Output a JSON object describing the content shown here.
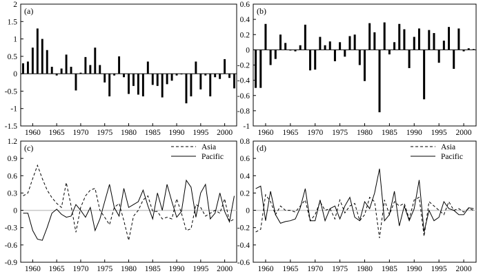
{
  "chart_data": [
    {
      "panel": "(a)",
      "type": "bar",
      "ylim": [
        -1.5,
        2
      ],
      "yticks": [
        -1.5,
        -1,
        -0.5,
        0,
        0.5,
        1,
        1.5,
        2
      ],
      "ytick_labels": [
        "-1.5",
        "-1",
        "-0.5",
        "0",
        "0.5",
        "1",
        "1.5",
        "2"
      ],
      "xlim": [
        1957.5,
        2002.5
      ],
      "xticks": [
        1960,
        1965,
        1970,
        1975,
        1980,
        1985,
        1990,
        1995,
        2000
      ],
      "xtick_labels": [
        "1960",
        "1965",
        "1970",
        "1975",
        "1980",
        "1985",
        "1990",
        "1995",
        "2000"
      ],
      "x": [
        1958,
        1959,
        1960,
        1961,
        1962,
        1963,
        1964,
        1965,
        1966,
        1967,
        1968,
        1969,
        1970,
        1971,
        1972,
        1973,
        1974,
        1975,
        1976,
        1977,
        1978,
        1979,
        1980,
        1981,
        1982,
        1983,
        1984,
        1985,
        1986,
        1987,
        1988,
        1989,
        1990,
        1991,
        1992,
        1993,
        1994,
        1995,
        1996,
        1997,
        1998,
        1999,
        2000,
        2001,
        2002
      ],
      "values": [
        0.3,
        0.35,
        0.75,
        1.3,
        1.0,
        0.68,
        0.2,
        -0.05,
        0.15,
        0.55,
        0.2,
        -0.48,
        0.03,
        0.48,
        0.25,
        0.75,
        0.25,
        -0.25,
        -0.65,
        -0.05,
        0.5,
        -0.1,
        -0.58,
        -0.35,
        -0.6,
        -0.65,
        0.35,
        -0.32,
        -0.35,
        -0.68,
        -0.3,
        -0.2,
        -0.05,
        0.0,
        -0.85,
        -0.65,
        0.35,
        -0.45,
        -0.05,
        -0.65,
        -0.1,
        -0.15,
        0.42,
        -0.12,
        -0.42
      ]
    },
    {
      "panel": "(b)",
      "type": "bar",
      "ylim": [
        -1,
        0.6
      ],
      "yticks": [
        -1,
        -0.8,
        -0.6,
        -0.4,
        -0.2,
        0,
        0.2,
        0.4,
        0.6
      ],
      "ytick_labels": [
        "-1",
        "-0.8",
        "-0.6",
        "-0.4",
        "-0.2",
        "0",
        "0.2",
        "0.4",
        "0.6"
      ],
      "xlim": [
        1957.5,
        2002.5
      ],
      "xticks": [
        1960,
        1965,
        1970,
        1975,
        1980,
        1985,
        1990,
        1995,
        2000
      ],
      "xtick_labels": [
        "1960",
        "1965",
        "1970",
        "1975",
        "1980",
        "1985",
        "1990",
        "1995",
        "2000"
      ],
      "x": [
        1958,
        1959,
        1960,
        1961,
        1962,
        1963,
        1964,
        1965,
        1966,
        1967,
        1968,
        1969,
        1970,
        1971,
        1972,
        1973,
        1974,
        1975,
        1976,
        1977,
        1978,
        1979,
        1980,
        1981,
        1982,
        1983,
        1984,
        1985,
        1986,
        1987,
        1988,
        1989,
        1990,
        1991,
        1992,
        1993,
        1994,
        1995,
        1996,
        1997,
        1998,
        1999,
        2000,
        2001,
        2002
      ],
      "values": [
        -0.5,
        -0.5,
        0.34,
        -0.2,
        -0.12,
        0.2,
        0.09,
        0.0,
        -0.02,
        0.06,
        0.33,
        -0.27,
        -0.26,
        0.17,
        0.06,
        0.11,
        -0.15,
        0.1,
        -0.09,
        0.18,
        0.2,
        -0.2,
        -0.41,
        0.35,
        0.23,
        -0.82,
        0.36,
        -0.06,
        0.1,
        0.34,
        0.27,
        -0.24,
        0.17,
        0.28,
        -0.65,
        0.26,
        0.22,
        -0.17,
        0.12,
        0.3,
        -0.25,
        0.28,
        -0.02,
        0.02,
        0.01
      ]
    },
    {
      "panel": "(c)",
      "type": "line",
      "ylim": [
        -0.9,
        1.2
      ],
      "yticks": [
        -0.9,
        -0.6,
        -0.3,
        0,
        0.3,
        0.6,
        0.9,
        1.2
      ],
      "ytick_labels": [
        "-0.9",
        "-0.6",
        "-0.3",
        "0",
        "0.3",
        "0.6",
        "0.9",
        "1.2"
      ],
      "xlim": [
        1957.5,
        2002.5
      ],
      "xticks": [
        1960,
        1965,
        1970,
        1975,
        1980,
        1985,
        1990,
        1995,
        2000
      ],
      "xtick_labels": [
        "1960",
        "1965",
        "1970",
        "1975",
        "1980",
        "1985",
        "1990",
        "1995",
        "2000"
      ],
      "x": [
        1958,
        1959,
        1960,
        1961,
        1962,
        1963,
        1964,
        1965,
        1966,
        1967,
        1968,
        1969,
        1970,
        1971,
        1972,
        1973,
        1974,
        1975,
        1976,
        1977,
        1978,
        1979,
        1980,
        1981,
        1982,
        1983,
        1984,
        1985,
        1986,
        1987,
        1988,
        1989,
        1990,
        1991,
        1992,
        1993,
        1994,
        1995,
        1996,
        1997,
        1998,
        1999,
        2000,
        2001,
        2002
      ],
      "legend": [
        "Asia",
        "Pacific"
      ],
      "series": [
        {
          "name": "Asia",
          "style": "dashed",
          "values": [
            0.25,
            0.3,
            0.55,
            0.78,
            0.55,
            0.35,
            0.22,
            0.12,
            0.05,
            0.48,
            0.08,
            -0.38,
            0.05,
            0.25,
            0.35,
            0.38,
            0.0,
            -0.12,
            -0.25,
            0.05,
            0.12,
            -0.18,
            -0.52,
            -0.1,
            0.0,
            0.18,
            0.25,
            -0.02,
            -0.02,
            -0.15,
            -0.12,
            -0.15,
            0.2,
            -0.05,
            -0.35,
            -0.32,
            0.1,
            0.05,
            -0.1,
            -0.05,
            0.0,
            -0.05,
            0.2,
            -0.2,
            -0.15
          ]
        },
        {
          "name": "Pacific",
          "style": "solid",
          "values": [
            -0.05,
            -0.05,
            -0.35,
            -0.5,
            -0.52,
            -0.3,
            -0.05,
            0.02,
            -0.07,
            -0.12,
            -0.1,
            0.1,
            0.0,
            -0.12,
            0.05,
            -0.35,
            -0.15,
            0.15,
            0.45,
            0.05,
            -0.1,
            0.38,
            0.05,
            0.1,
            0.15,
            0.35,
            0.08,
            -0.15,
            0.3,
            0.0,
            0.45,
            0.15,
            -0.12,
            -0.02,
            0.52,
            0.4,
            -0.12,
            0.3,
            0.45,
            -0.15,
            -0.05,
            0.3,
            -0.02,
            -0.2,
            0.25
          ]
        }
      ]
    },
    {
      "panel": "(d)",
      "type": "line",
      "ylim": [
        -0.6,
        0.8
      ],
      "yticks": [
        -0.6,
        -0.4,
        -0.2,
        0,
        0.2,
        0.4,
        0.6,
        0.8
      ],
      "ytick_labels": [
        "-0.6",
        "-0.4",
        "-0.2",
        "0",
        "0.2",
        "0.4",
        "0.6",
        "0.8"
      ],
      "xlim": [
        1957.5,
        2002.5
      ],
      "xticks": [
        1960,
        1965,
        1970,
        1975,
        1980,
        1985,
        1990,
        1995,
        2000
      ],
      "xtick_labels": [
        "1960",
        "1965",
        "1970",
        "1975",
        "1980",
        "1985",
        "1990",
        "1995",
        "2000"
      ],
      "x": [
        1958,
        1959,
        1960,
        1961,
        1962,
        1963,
        1964,
        1965,
        1966,
        1967,
        1968,
        1969,
        1970,
        1971,
        1972,
        1973,
        1974,
        1975,
        1976,
        1977,
        1978,
        1979,
        1980,
        1981,
        1982,
        1983,
        1984,
        1985,
        1986,
        1987,
        1988,
        1989,
        1990,
        1991,
        1992,
        1993,
        1994,
        1995,
        1996,
        1997,
        1998,
        1999,
        2000,
        2001,
        2002
      ],
      "legend": [
        "Asia",
        "Pacific"
      ],
      "series": [
        {
          "name": "Asia",
          "style": "dashed",
          "values": [
            -0.25,
            -0.22,
            0.18,
            0.1,
            -0.05,
            0.05,
            0.0,
            0.0,
            -0.02,
            0.05,
            0.12,
            -0.12,
            -0.05,
            0.1,
            0.0,
            0.02,
            -0.1,
            0.12,
            -0.03,
            0.05,
            0.08,
            -0.12,
            -0.05,
            0.15,
            0.1,
            -0.32,
            0.12,
            -0.05,
            0.1,
            0.05,
            0.08,
            -0.1,
            0.12,
            0.15,
            -0.3,
            0.1,
            0.05,
            0.0,
            -0.05,
            0.1,
            0.0,
            0.02,
            -0.02,
            0.02,
            0.0
          ]
        },
        {
          "name": "Pacific",
          "style": "solid",
          "values": [
            0.25,
            0.28,
            -0.12,
            0.22,
            -0.05,
            -0.15,
            -0.13,
            -0.12,
            -0.1,
            0.03,
            0.25,
            -0.12,
            -0.12,
            0.12,
            -0.12,
            0.02,
            0.05,
            -0.1,
            0.05,
            0.15,
            -0.08,
            -0.12,
            0.1,
            0.02,
            0.2,
            0.48,
            -0.12,
            -0.05,
            0.22,
            -0.18,
            0.05,
            -0.12,
            0.02,
            0.35,
            -0.25,
            0.0,
            -0.12,
            -0.08,
            0.1,
            0.02,
            0.0,
            -0.05,
            -0.05,
            0.03,
            0.02
          ]
        }
      ]
    }
  ]
}
